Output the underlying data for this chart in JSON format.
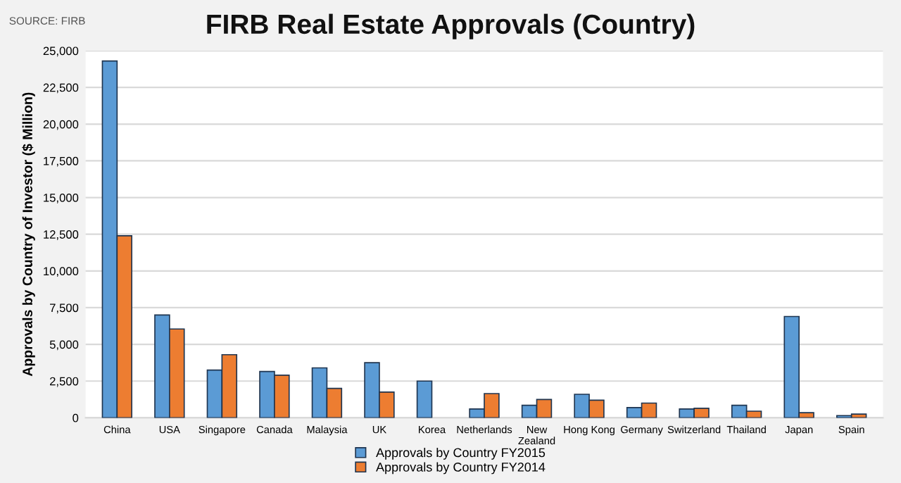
{
  "chart_data": {
    "type": "bar",
    "title": "FIRB Real Estate Approvals (Country)",
    "ylabel": "Approvals by Country of Investor ($ Million)",
    "annotations": [
      "SOURCE: FIRB"
    ],
    "categories": [
      "China",
      "USA",
      "Singapore",
      "Canada",
      "Malaysia",
      "UK",
      "Korea",
      "Netherlands",
      "New\nZealand",
      "Hong Kong",
      "Germany",
      "Switzerland",
      "Thailand",
      "Japan",
      "Spain"
    ],
    "series": [
      {
        "name": "Approvals by Country FY2015",
        "color": "#5b9bd5",
        "values": [
          24300,
          7000,
          3250,
          3150,
          3400,
          3750,
          2500,
          600,
          850,
          1600,
          700,
          600,
          850,
          6900,
          150
        ]
      },
      {
        "name": "Approvals by Country FY2014",
        "color": "#ed7d31",
        "values": [
          12400,
          6050,
          4300,
          2900,
          2000,
          1750,
          null,
          1650,
          1250,
          1200,
          1000,
          650,
          450,
          350,
          250
        ]
      }
    ],
    "ylim": [
      0,
      25000
    ],
    "yticks": [
      {
        "value": 0,
        "label": "0"
      },
      {
        "value": 2500,
        "label": "2,500"
      },
      {
        "value": 5000,
        "label": "5,000"
      },
      {
        "value": 7500,
        "label": "7,500"
      },
      {
        "value": 10000,
        "label": "10,000"
      },
      {
        "value": 12500,
        "label": "12,500"
      },
      {
        "value": 15000,
        "label": "15,000"
      },
      {
        "value": 17500,
        "label": "17,500"
      },
      {
        "value": 20000,
        "label": "20,000"
      },
      {
        "value": 22500,
        "label": "22,500"
      },
      {
        "value": 25000,
        "label": "25,000"
      }
    ],
    "grid": "y",
    "legend": "bottom"
  }
}
